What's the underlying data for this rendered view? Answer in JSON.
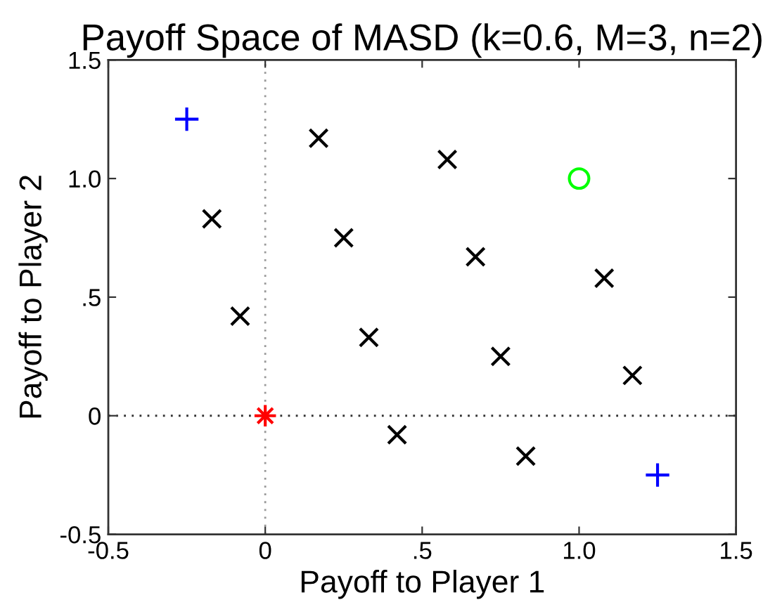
{
  "chart_data": {
    "type": "scatter",
    "title": "Payoff Space of MASD (k=0.6, M=3, n=2)",
    "xlabel": "Payoff to Player 1",
    "ylabel": "Payoff to Player 2",
    "xlim": [
      -0.5,
      1.5
    ],
    "ylim": [
      -0.5,
      1.5
    ],
    "xticks": [
      -0.5,
      0,
      {
        "value": 0.5,
        "label": ".5"
      },
      {
        "value": 1,
        "label": "1.0"
      },
      1.5
    ],
    "yticks": [
      -0.5,
      0,
      {
        "value": 0.5,
        "label": ".5"
      },
      {
        "value": 1,
        "label": "1.0"
      },
      1.5
    ],
    "ref_lines": [
      {
        "axis": "x",
        "value": 0,
        "color": "#999999",
        "line_style": "dotted"
      },
      {
        "axis": "y",
        "value": 0,
        "color": "#333333",
        "line_style": "dotted"
      }
    ],
    "series": [
      {
        "color": "#000000",
        "marker": "cross",
        "x": [
          -0.17,
          0.25,
          0.58,
          1.08,
          0.33,
          0.75,
          0.83
        ],
        "values": [
          0.83,
          0.75,
          1.08,
          0.58,
          0.33,
          0.25,
          -0.17
        ]
      },
      {
        "color": "#000000",
        "marker": "cross",
        "x": [
          0.17,
          0.67,
          -0.08,
          0.42,
          1.17
        ],
        "values": [
          1.17,
          0.67,
          0.42,
          -0.08,
          0.17
        ]
      },
      {
        "color": "#0000ff",
        "marker": "plus",
        "x": [
          -0.25,
          1.25
        ],
        "values": [
          1.25,
          -0.25
        ]
      },
      {
        "color": "#00ff00",
        "marker": "circle",
        "x": [
          1
        ],
        "values": [
          1
        ]
      },
      {
        "color": "#ff0000",
        "marker": "star",
        "x": [
          0
        ],
        "values": [
          0
        ]
      }
    ]
  }
}
